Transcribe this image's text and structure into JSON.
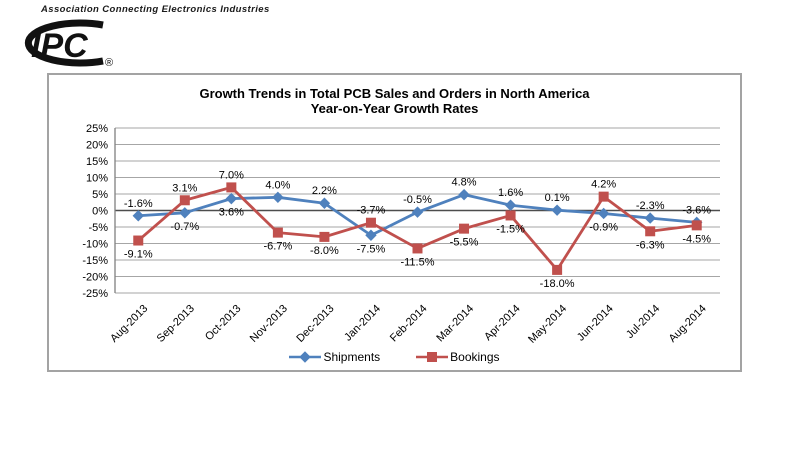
{
  "header": {
    "association_line": "Association Connecting Electronics Industries",
    "logo_text": "IPC",
    "logo_reg_mark": "®"
  },
  "chart_data": {
    "type": "line",
    "title": "Growth Trends in Total PCB Sales and Orders in North America",
    "subtitle": "Year-on-Year Growth Rates",
    "categories": [
      "Aug-2013",
      "Sep-2013",
      "Oct-2013",
      "Nov-2013",
      "Dec-2013",
      "Jan-2014",
      "Feb-2014",
      "Mar-2014",
      "Apr-2014",
      "May-2014",
      "Jun-2014",
      "Jul-2014",
      "Aug-2014"
    ],
    "series": [
      {
        "name": "Shipments",
        "color": "#4F81BD",
        "marker": "diamond",
        "values": [
          -1.6,
          -0.7,
          3.6,
          4.0,
          2.2,
          -7.5,
          -0.5,
          4.8,
          1.6,
          0.1,
          -0.9,
          -2.3,
          -3.6
        ],
        "label_positions": [
          "above",
          "below",
          "below",
          "above",
          "above",
          "below",
          "above",
          "above",
          "above",
          "above",
          "below",
          "above",
          "above"
        ]
      },
      {
        "name": "Bookings",
        "color": "#C0504D",
        "marker": "square",
        "values": [
          -9.1,
          3.1,
          7.0,
          -6.7,
          -8.0,
          -3.7,
          -11.5,
          -5.5,
          -1.5,
          -18.0,
          4.2,
          -6.3,
          -4.5
        ],
        "label_positions": [
          "below",
          "above",
          "above",
          "below",
          "below",
          "above",
          "below",
          "below",
          "below",
          "below",
          "above",
          "below",
          "below"
        ]
      }
    ],
    "ylim": [
      -25,
      25
    ],
    "ytick_step": 5,
    "ytick_suffix": "%",
    "data_label_suffix": "%",
    "grid": true,
    "legend_position": "bottom",
    "colors": {
      "gridline": "#a6a6a6",
      "zero_line": "#4d4d4d",
      "axis_line": "#808080",
      "text": "#000000"
    }
  }
}
